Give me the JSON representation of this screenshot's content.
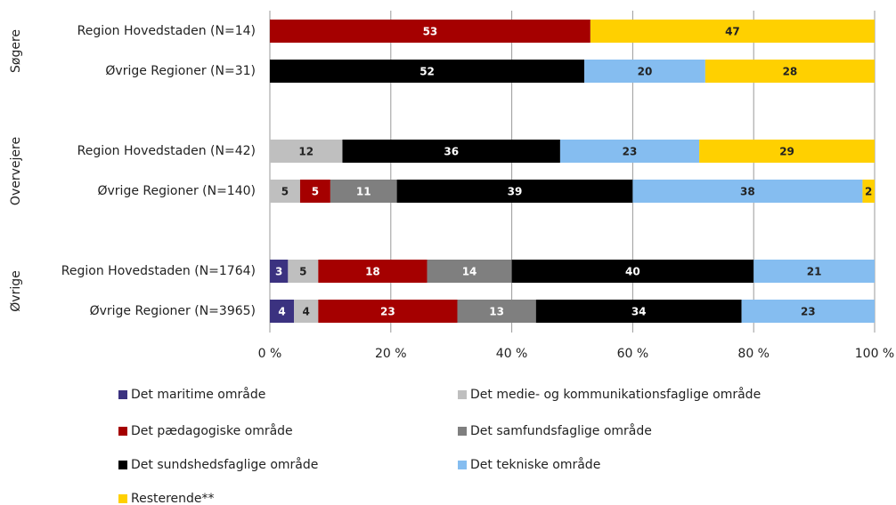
{
  "chart_data": {
    "type": "stacked-barh",
    "groups": [
      "Søgere",
      "Overvejere",
      "Øvrige"
    ],
    "categories": [
      "Region Hovedstaden (N=14)",
      "Øvrige Regioner (N=31)",
      "Region Hovedstaden (N=42)",
      "Øvrige Regioner (N=140)",
      "Region Hovedstaden (N=1764)",
      "Øvrige Regioner (N=3965)"
    ],
    "series": [
      {
        "name": "Det maritime område",
        "color": "#3b3280",
        "values": [
          null,
          null,
          null,
          null,
          3,
          4
        ]
      },
      {
        "name": "Det medie- og kommunikationsfaglige område",
        "color": "#bfbfbf",
        "values": [
          null,
          null,
          12,
          5,
          5,
          4
        ]
      },
      {
        "name": "Det pædagogiske område",
        "color": "#a50000",
        "values": [
          53,
          null,
          null,
          5,
          18,
          23
        ]
      },
      {
        "name": "Det samfundsfaglige område",
        "color": "#7f7f7f",
        "values": [
          null,
          null,
          null,
          11,
          14,
          13
        ]
      },
      {
        "name": "Det sundshedsfaglige område",
        "color": "#000000",
        "values": [
          null,
          52,
          36,
          39,
          40,
          34
        ]
      },
      {
        "name": "Det tekniske område",
        "color": "#85bdf0",
        "values": [
          null,
          20,
          23,
          38,
          21,
          23
        ]
      },
      {
        "name": "Resterende**",
        "color": "#ffd000",
        "values": [
          47,
          28,
          29,
          2,
          null,
          null
        ]
      }
    ],
    "xlim": [
      0,
      100
    ],
    "xticks": [
      {
        "value": 0,
        "label": "0 %"
      },
      {
        "value": 20,
        "label": "20 %"
      },
      {
        "value": 40,
        "label": "40 %"
      },
      {
        "value": 60,
        "label": "60 %"
      },
      {
        "value": 80,
        "label": "80 %"
      },
      {
        "value": 100,
        "label": "100 %"
      }
    ],
    "grid": true
  }
}
